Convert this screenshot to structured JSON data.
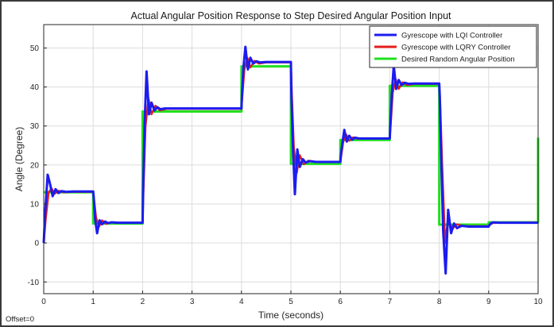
{
  "chart_data": {
    "type": "line",
    "title": "Actual Angular Position Response to Step Desired Angular Position Input",
    "xlabel": "Time (seconds)",
    "ylabel": "Angle (Degree)",
    "xlim": [
      0,
      10
    ],
    "ylim": [
      -13,
      56
    ],
    "xticks": [
      0,
      1,
      2,
      3,
      4,
      5,
      6,
      7,
      8,
      9,
      10
    ],
    "yticks": [
      -10,
      0,
      10,
      20,
      30,
      40,
      50
    ],
    "grid": true,
    "legend_position": "top-right",
    "annotation": "Offset=0",
    "series": [
      {
        "name": "Gyrescope with LQI Controller",
        "color": "#1c1cf0",
        "x": [
          0,
          0.03,
          0.08,
          0.13,
          0.18,
          0.24,
          0.3,
          0.36,
          0.45,
          0.6,
          1.0,
          1.01,
          1.04,
          1.08,
          1.13,
          1.18,
          1.24,
          1.3,
          1.38,
          1.5,
          2.0,
          2.01,
          2.04,
          2.08,
          2.13,
          2.18,
          2.24,
          2.3,
          2.36,
          2.45,
          2.6,
          4.0,
          4.01,
          4.04,
          4.08,
          4.13,
          4.18,
          4.24,
          4.3,
          4.38,
          4.5,
          5.0,
          5.01,
          5.04,
          5.08,
          5.13,
          5.18,
          5.24,
          5.3,
          5.38,
          5.5,
          6.0,
          6.01,
          6.04,
          6.08,
          6.13,
          6.18,
          6.24,
          6.3,
          6.38,
          6.5,
          7.0,
          7.01,
          7.04,
          7.08,
          7.13,
          7.18,
          7.24,
          7.3,
          7.38,
          7.5,
          8.0,
          8.01,
          8.04,
          8.08,
          8.13,
          8.18,
          8.24,
          8.3,
          8.36,
          8.45,
          8.6,
          9.0,
          9.01,
          9.05,
          9.1,
          9.2,
          10.0
        ],
        "y": [
          0,
          8,
          17.5,
          15,
          12,
          13.8,
          12.8,
          13.3,
          13.1,
          13.2,
          13.2,
          12,
          6,
          2.5,
          5.8,
          4.8,
          5.5,
          5.1,
          5.3,
          5.2,
          5.2,
          13,
          30,
          44,
          33,
          36,
          34,
          34.8,
          34.3,
          34.5,
          34.5,
          34.5,
          38,
          45,
          50.3,
          44.5,
          47.5,
          46,
          46.6,
          46.3,
          46.4,
          46.4,
          38,
          25,
          12.5,
          24,
          19.5,
          21.5,
          20.6,
          21,
          20.8,
          20.8,
          22.5,
          25.5,
          29,
          26,
          27.5,
          26.5,
          27,
          26.8,
          26.8,
          26.8,
          30,
          38,
          45.5,
          39.5,
          41.8,
          40.5,
          41.1,
          40.8,
          40.9,
          40.9,
          38,
          22,
          3,
          -7.8,
          8.5,
          2.5,
          5,
          3.8,
          4.4,
          4.2,
          4.2,
          4.5,
          5.1,
          5.3,
          5.2,
          5.2
        ]
      },
      {
        "name": "Gyrescope with LQRY Controller",
        "color": "#e51c1c",
        "x": [
          0,
          0.04,
          0.1,
          0.16,
          0.22,
          0.3,
          0.4,
          0.55,
          1.0,
          1.02,
          1.06,
          1.12,
          1.18,
          1.26,
          1.35,
          1.5,
          2.0,
          2.02,
          2.06,
          2.12,
          2.18,
          2.26,
          2.35,
          2.5,
          4.0,
          4.02,
          4.06,
          4.12,
          4.18,
          4.26,
          4.35,
          4.5,
          5.0,
          5.02,
          5.06,
          5.12,
          5.18,
          5.26,
          5.35,
          5.5,
          6.0,
          6.02,
          6.06,
          6.12,
          6.18,
          6.26,
          6.35,
          6.5,
          7.0,
          7.02,
          7.06,
          7.12,
          7.18,
          7.26,
          7.35,
          7.5,
          8.0,
          8.02,
          8.06,
          8.12,
          8.18,
          8.26,
          8.35,
          8.5,
          9.0,
          9.02,
          9.08,
          9.2,
          10.0
        ],
        "y": [
          0,
          6,
          13,
          14,
          12.6,
          13.4,
          13,
          13.1,
          13.1,
          11,
          6.5,
          4.2,
          5.8,
          4.9,
          5.3,
          5.2,
          5.2,
          14,
          30,
          37,
          33,
          35.2,
          34,
          34.4,
          34.4,
          38,
          44.5,
          47.5,
          45,
          46.7,
          46,
          46.3,
          46.3,
          38,
          24.5,
          18,
          22.5,
          20.2,
          21.1,
          20.8,
          20.8,
          22.5,
          26,
          27.8,
          26.2,
          27.1,
          26.7,
          26.8,
          26.8,
          30.5,
          38.5,
          42,
          39.5,
          41.2,
          40.5,
          40.8,
          40.8,
          36,
          20,
          0,
          6.5,
          3.5,
          4.8,
          4.3,
          4.3,
          4.6,
          5.1,
          5.2,
          5.2
        ]
      },
      {
        "name": "Desired Random Angular Position",
        "color": "#1fe01f",
        "x": [
          0,
          0.0001,
          1.0,
          1.0001,
          2.0,
          2.0001,
          4.0,
          4.0001,
          5.0,
          5.0001,
          6.0,
          6.0001,
          7.0,
          7.0001,
          8.0,
          8.0001,
          9.0,
          9.0001,
          10.0,
          10.0001
        ],
        "y": [
          13,
          13,
          13,
          5,
          5,
          33.7,
          33.7,
          45.3,
          45.3,
          20.3,
          20.3,
          26.4,
          26.4,
          40.3,
          40.3,
          4.7,
          4.7,
          5.3,
          5.3,
          27
        ]
      }
    ]
  }
}
